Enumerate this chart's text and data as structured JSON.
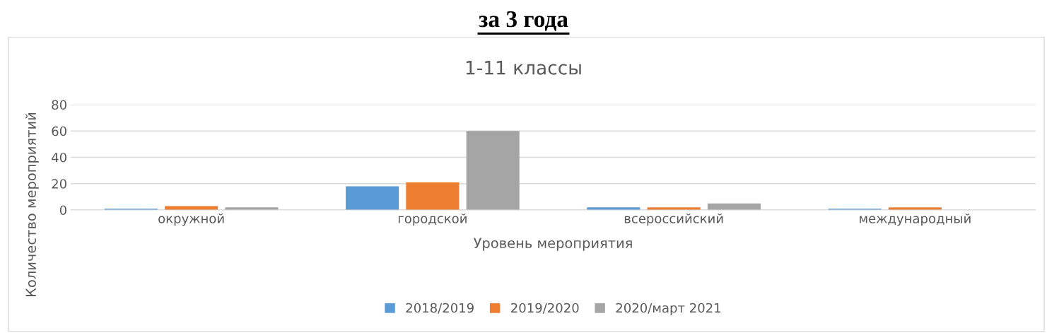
{
  "chart_data": {
    "type": "bar",
    "title": "за 3 года",
    "subtitle": "1-11 классы",
    "xlabel": "Уровень мероприятия",
    "ylabel": "Количество мероприятий",
    "categories": [
      "окружной",
      "городской",
      "всероссийский",
      "международный"
    ],
    "series": [
      {
        "name": "2018/2019",
        "color": "#5b9bd5",
        "values": [
          1,
          18,
          2,
          1
        ]
      },
      {
        "name": "2019/2020",
        "color": "#ed7d31",
        "values": [
          3,
          21,
          2,
          2
        ]
      },
      {
        "name": "2020/март 2021",
        "color": "#a5a5a5",
        "values": [
          2,
          60,
          5,
          0
        ]
      }
    ],
    "ylim": [
      0,
      80
    ],
    "yticks": [
      0,
      20,
      40,
      60,
      80
    ],
    "grid": "y",
    "legend": "bottom"
  }
}
